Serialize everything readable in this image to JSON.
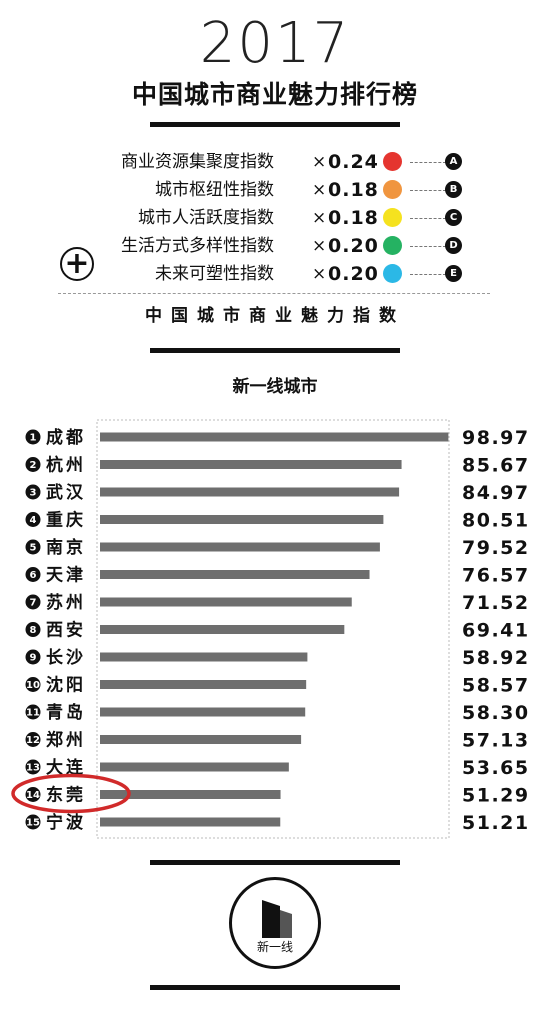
{
  "year": "2017",
  "title": "中国城市商业魅力排行榜",
  "formula": {
    "items": [
      {
        "label": "商业资源集聚度指数",
        "times": "×",
        "weight": "0.24",
        "color": "#e5352f",
        "badge": "A"
      },
      {
        "label": "城市枢纽性指数",
        "times": "×",
        "weight": "0.18",
        "color": "#f0953f",
        "badge": "B"
      },
      {
        "label": "城市人活跃度指数",
        "times": "×",
        "weight": "0.18",
        "color": "#f5e21f",
        "badge": "C"
      },
      {
        "label": "生活方式多样性指数",
        "times": "×",
        "weight": "0.20",
        "color": "#25b262",
        "badge": "D"
      },
      {
        "label": "未来可塑性指数",
        "times": "×",
        "weight": "0.20",
        "color": "#2bb8e6",
        "badge": "E"
      }
    ],
    "plus_symbol": "+",
    "result_label": "中国城市商业魅力指数"
  },
  "colors": {
    "bar": "#6e6e6e",
    "highlight": "#d12a2a",
    "ink": "#111111"
  },
  "chart_data": {
    "type": "bar",
    "orientation": "horizontal",
    "title": "新一线城市",
    "categories": [
      "成都",
      "杭州",
      "武汉",
      "重庆",
      "南京",
      "天津",
      "苏州",
      "西安",
      "长沙",
      "沈阳",
      "青岛",
      "郑州",
      "大连",
      "东莞",
      "宁波"
    ],
    "ranks": [
      "1",
      "2",
      "3",
      "4",
      "5",
      "6",
      "7",
      "8",
      "9",
      "10",
      "11",
      "12",
      "13",
      "14",
      "15"
    ],
    "values": [
      98.97,
      85.67,
      84.97,
      80.51,
      79.52,
      76.57,
      71.52,
      69.41,
      58.92,
      58.57,
      58.3,
      57.13,
      53.65,
      51.29,
      51.21
    ],
    "value_labels": [
      "98.97",
      "85.67",
      "84.97",
      "80.51",
      "79.52",
      "76.57",
      "71.52",
      "69.41",
      "58.92",
      "58.57",
      "58.30",
      "57.13",
      "53.65",
      "51.29",
      "51.21"
    ],
    "xlim": [
      0,
      100
    ],
    "highlighted": "东莞",
    "grid": false,
    "legend": "none"
  },
  "logo": {
    "text": "新一线"
  }
}
